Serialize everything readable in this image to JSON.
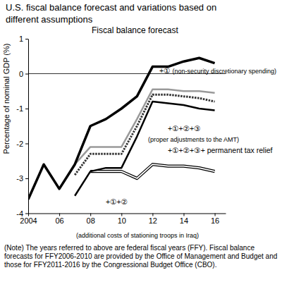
{
  "chart_data": {
    "type": "line",
    "title": "U.S. fiscal balance forecast and variations based on different assumptions",
    "y_label": "Percentage of nominal GDP (%)",
    "note": "(Note) The years referred to above are federal fiscal years (FFY). Fiscal balance forecasts for FFY2006-2010 are provided by the Office of Management and Budget and those for FFY2011-2016 by the Congressional Budget Office (CBO).",
    "x": [
      2004,
      2005,
      2006,
      2007,
      2008,
      2009,
      2010,
      2011,
      2012,
      2013,
      2014,
      2015,
      2016
    ],
    "xlim": [
      2004,
      2016.7
    ],
    "xticks": [
      2004,
      {
        "value": 2006,
        "label": "06"
      },
      {
        "value": 2008,
        "label": "08"
      },
      {
        "value": 2010,
        "label": "10"
      },
      {
        "value": 2012,
        "label": "12"
      },
      {
        "value": 2014,
        "label": "14"
      },
      {
        "value": 2016,
        "label": "16"
      }
    ],
    "ylim": [
      -4,
      1
    ],
    "yticks": [
      -4,
      -3,
      -2,
      -1,
      0,
      1
    ],
    "grid": false,
    "series": [
      {
        "name": "Fiscal balance forecast",
        "color": "#000000",
        "line_style": "solid",
        "values": [
          -3.6,
          -2.6,
          -3.3,
          -2.6,
          -1.5,
          -1.3,
          -1.0,
          -0.65,
          0.2,
          0.2,
          0.35,
          0.45,
          0.3
        ]
      },
      {
        "name": "+①",
        "annotation": "(non-security discretionary spending)",
        "color": "#9a9a9a",
        "line_style": "solid",
        "values": [
          null,
          null,
          null,
          -2.6,
          -2.1,
          -2.1,
          -2.1,
          -1.3,
          -0.45,
          -0.45,
          -0.5,
          -0.5,
          -0.55
        ]
      },
      {
        "name": "+①+②+③",
        "annotation": "(proper adjustments to the AMT)",
        "color": "#333333",
        "line_style": "dotted",
        "values": [
          null,
          null,
          null,
          -2.9,
          -2.3,
          -2.3,
          -2.3,
          -1.5,
          -0.6,
          -0.6,
          -0.65,
          -0.7,
          -0.8
        ]
      },
      {
        "name": "+①+②+③+ permanent tax relief",
        "color": "#000000",
        "line_style": "solid",
        "values": [
          null,
          null,
          null,
          -3.5,
          -2.8,
          -2.7,
          -2.7,
          -1.8,
          -0.8,
          -0.85,
          -0.9,
          -1.0,
          -1.05
        ]
      },
      {
        "name": "+①+②",
        "annotation": "(additional costs of stationing troops in Iraq)",
        "color": "#000000",
        "line_style": "double",
        "values": [
          null,
          null,
          null,
          null,
          -2.8,
          -2.8,
          -2.8,
          -3.0,
          -2.6,
          -2.65,
          -2.65,
          -2.7,
          -2.8
        ]
      }
    ]
  }
}
